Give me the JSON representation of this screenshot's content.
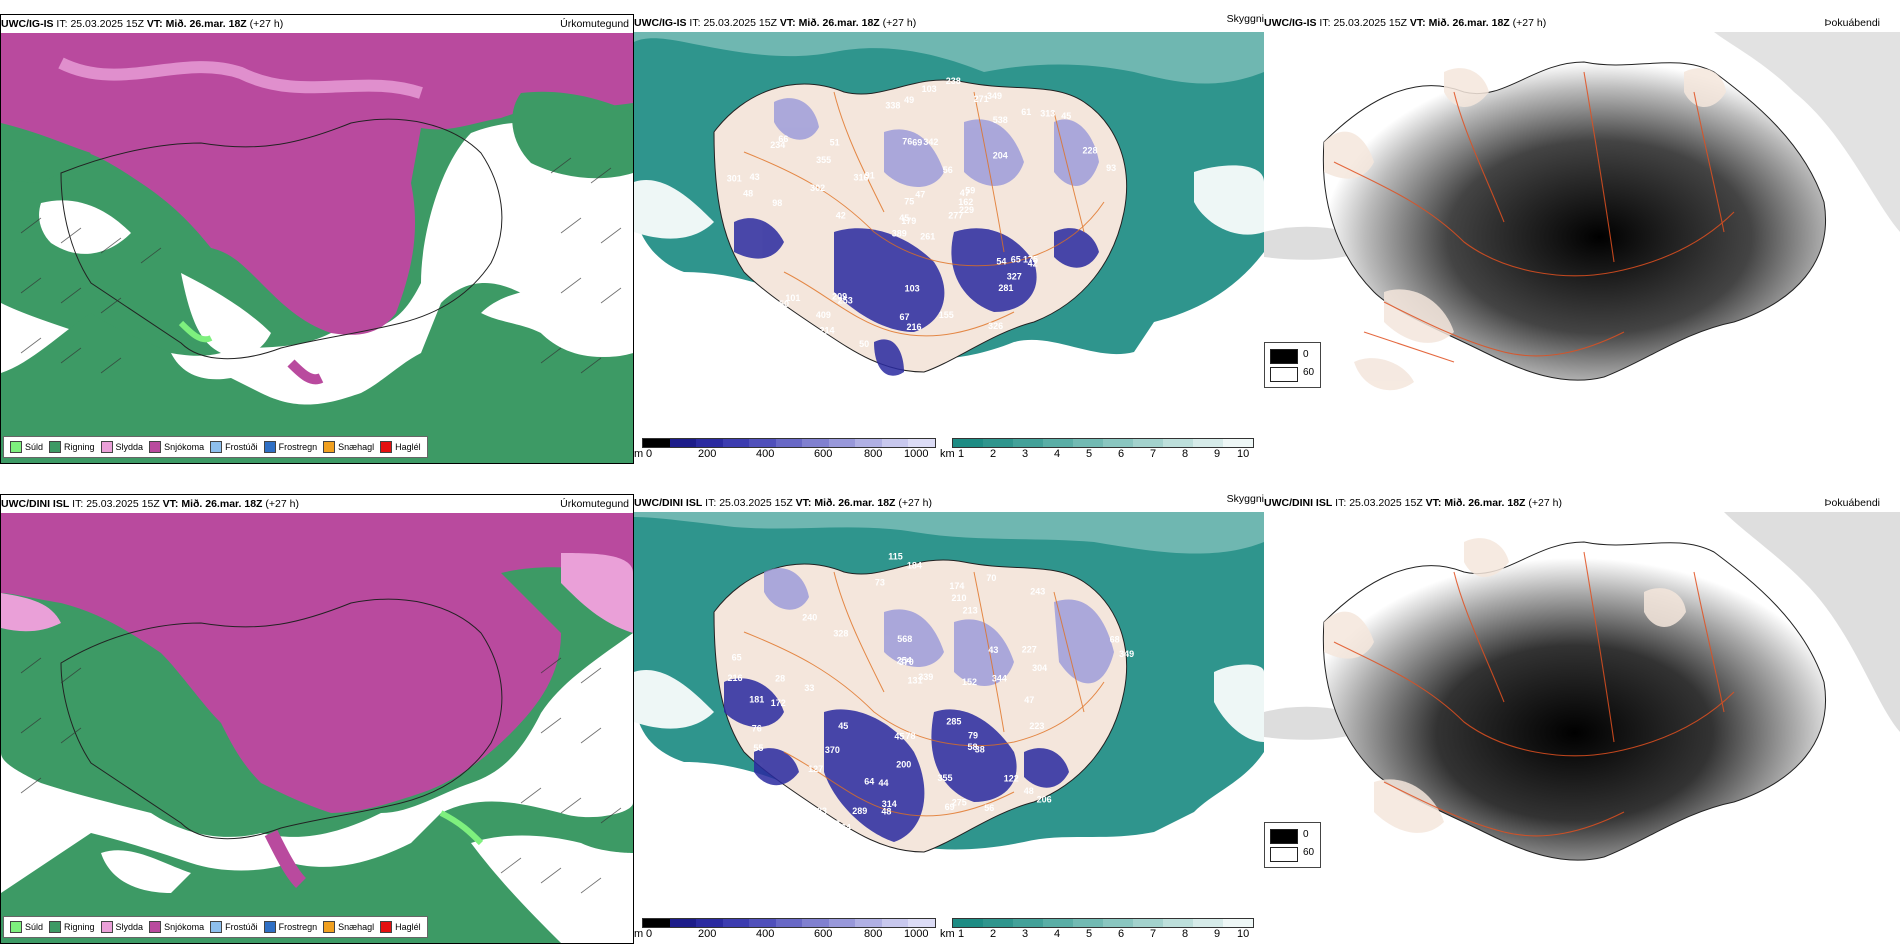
{
  "rows": [
    {
      "model": "UWC/IG-IS",
      "init_label": "IT:",
      "init": "25.03.2025 15Z",
      "valid_label": "VT:",
      "valid": "Mið. 26.mar. 18Z",
      "lead": "(+27 h)",
      "fields": {
        "precip": "Úrkomutegund",
        "ceiling": "Skyggni",
        "fog": "Þokuábendi"
      },
      "labels": [
        "261",
        "234",
        "179",
        "47",
        "253",
        "349",
        "342",
        "538",
        "277",
        "98",
        "389",
        "204",
        "76",
        "56",
        "101",
        "91",
        "214",
        "69",
        "59",
        "42",
        "66",
        "49",
        "48",
        "54",
        "93",
        "45",
        "67",
        "75",
        "51",
        "61",
        "209",
        "175",
        "238",
        "316",
        "302",
        "281",
        "323",
        "301",
        "162",
        "216",
        "229",
        "250",
        "228",
        "327",
        "326",
        "409",
        "155",
        "45",
        "103",
        "42",
        "43",
        "355",
        "313",
        "271",
        "338",
        "47",
        "103",
        "50",
        "65"
      ]
    },
    {
      "model": "UWC/DINI ISL",
      "init_label": "IT:",
      "init": "25.03.2025 15Z",
      "valid_label": "VT:",
      "valid": "Mið. 26.mar. 18Z",
      "lead": "(+27 h)",
      "fields": {
        "precip": "Úrkomutegund",
        "ceiling": "Skyggni",
        "fog": "Þokuábendi"
      },
      "labels": [
        "216",
        "184",
        "227",
        "172",
        "213",
        "568",
        "339",
        "223",
        "115",
        "240",
        "127",
        "275",
        "181",
        "285",
        "200",
        "122",
        "206",
        "370",
        "123",
        "131",
        "79",
        "64",
        "69",
        "76",
        "152",
        "87",
        "55",
        "304",
        "289",
        "328",
        "355",
        "344",
        "349",
        "78",
        "370",
        "243",
        "314",
        "33",
        "43",
        "48",
        "38",
        "47",
        "56",
        "73",
        "58",
        "254",
        "210",
        "45",
        "102",
        "68",
        "28",
        "44",
        "45",
        "48",
        "65",
        "70",
        "64",
        "174"
      ]
    }
  ],
  "precip_legend": [
    {
      "label": "Súld",
      "color": "#7ef07e"
    },
    {
      "label": "Rigning",
      "color": "#3d9a65"
    },
    {
      "label": "Slydda",
      "color": "#eaa0d8"
    },
    {
      "label": "Snjókoma",
      "color": "#b94a9e"
    },
    {
      "label": "Frostúði",
      "color": "#8ec0ee"
    },
    {
      "label": "Frostregn",
      "color": "#2f6fc4"
    },
    {
      "label": "Snæhagl",
      "color": "#f0a020"
    },
    {
      "label": "Haglél",
      "color": "#e41010"
    }
  ],
  "height_scale": {
    "unit": "m",
    "ticks": [
      "0",
      "200",
      "400",
      "600",
      "800",
      "1000"
    ],
    "colors": [
      "#000000",
      "#1c1c8a",
      "#2a2aa0",
      "#3c3cb0",
      "#5050bb",
      "#6868c6",
      "#8080d0",
      "#9898da",
      "#b0b0e4",
      "#c8c8ee",
      "#dcdcf6"
    ]
  },
  "visibility_scale": {
    "unit": "km",
    "ticks": [
      "1",
      "2",
      "3",
      "4",
      "5",
      "6",
      "7",
      "8",
      "9",
      "10"
    ],
    "colors": [
      "#1e8c84",
      "#2f958d",
      "#43a199",
      "#5aaea6",
      "#72bab3",
      "#8ac6c0",
      "#a3d2cd",
      "#bddfdb",
      "#d6ebe9",
      "#eef7f6"
    ]
  },
  "fog_legend": [
    {
      "label": "0",
      "color": "#000000"
    },
    {
      "label": "60",
      "color": "#ffffff"
    }
  ]
}
